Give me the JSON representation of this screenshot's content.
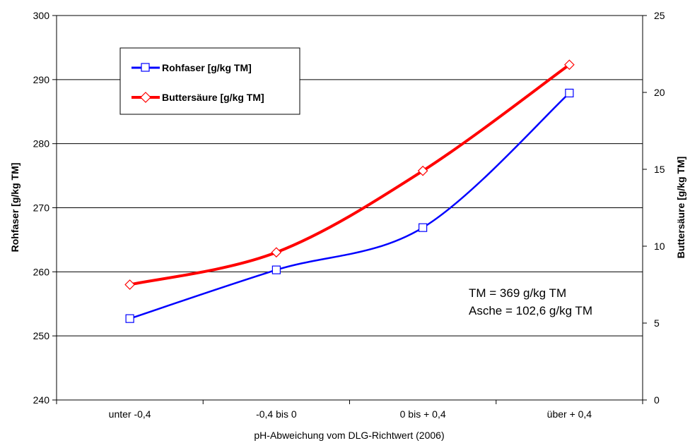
{
  "chart_data": {
    "type": "line",
    "categories": [
      "unter -0,4",
      "-0,4 bis 0",
      "0 bis + 0,4",
      "über + 0,4"
    ],
    "xlabel": "pH-Abweichung vom DLG-Richtwert (2006)",
    "y_left": {
      "label": "Rohfaser [g/kg TM]",
      "range": [
        240,
        300
      ],
      "ticks": [
        240,
        250,
        260,
        270,
        280,
        290,
        300
      ]
    },
    "y_right": {
      "label": "Buttersäure [g/kg TM]",
      "range": [
        0,
        25
      ],
      "ticks": [
        0,
        5,
        10,
        15,
        20,
        25
      ]
    },
    "grid": "horizontal",
    "legend_placement": "top-left",
    "series": [
      {
        "name": "Rohfaser [g/kg TM]",
        "axis": "left",
        "color": "#0000ff",
        "marker": "square",
        "values": [
          252.7,
          260.3,
          266.9,
          287.9
        ]
      },
      {
        "name": "Buttersäure [g/kg TM]",
        "axis": "right",
        "color": "#ff0000",
        "marker": "diamond",
        "values": [
          7.5,
          9.6,
          14.9,
          21.8
        ]
      }
    ],
    "annotations": [
      "TM = 369 g/kg TM",
      "Asche = 102,6 g/kg TM"
    ]
  }
}
